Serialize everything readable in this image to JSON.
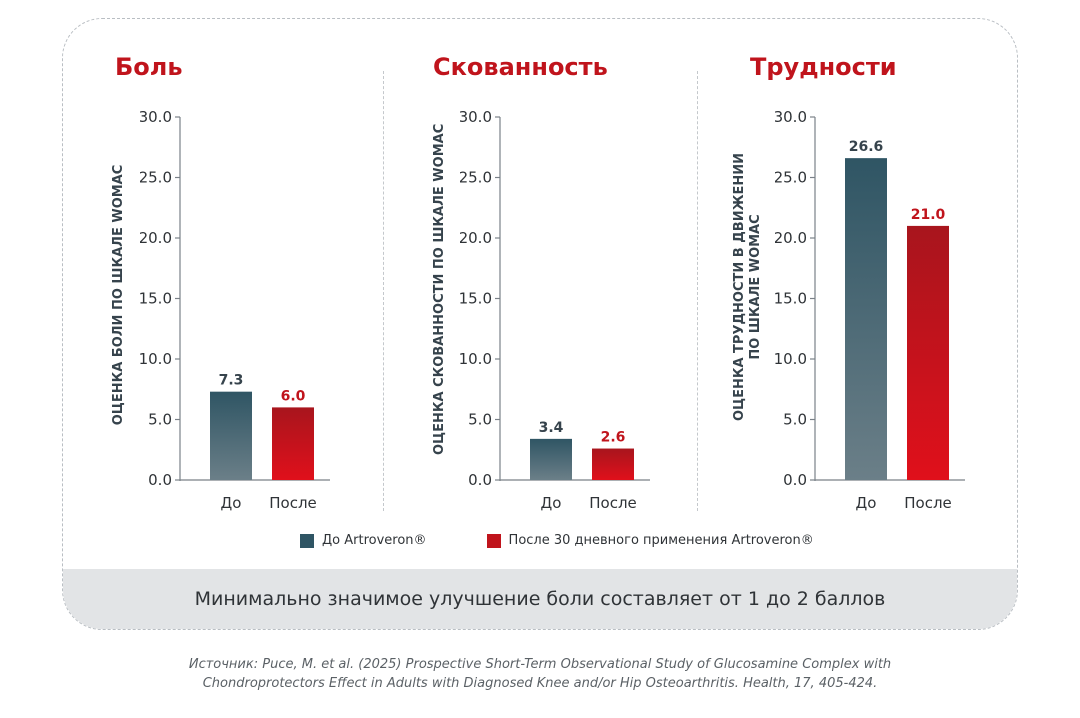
{
  "colors": {
    "before_top": "#2f5564",
    "before_bottom": "#6b7f88",
    "after_top": "#a8151d",
    "after_bottom": "#e0101b",
    "axis": "#7a8188",
    "text_dark": "#2f3337",
    "accent": "#c0141c"
  },
  "chart_data": [
    {
      "type": "bar",
      "title": "Боль",
      "ylabel": "ОЦЕНКА БОЛИ ПО ШКАЛЕ WOMAC",
      "categories": [
        "До",
        "После"
      ],
      "values": [
        7.3,
        6.0
      ],
      "value_labels": [
        "7.3",
        "6.0"
      ],
      "ylim": [
        0,
        30
      ],
      "yticks": [
        "0.0",
        "5.0",
        "10.0",
        "15.0",
        "20.0",
        "25.0",
        "30.0"
      ]
    },
    {
      "type": "bar",
      "title": "Скованность",
      "ylabel": "ОЦЕНКА СКОВАННОСТИ ПО ШКАЛЕ WOMAC",
      "categories": [
        "До",
        "После"
      ],
      "values": [
        3.4,
        2.6
      ],
      "value_labels": [
        "3.4",
        "2.6"
      ],
      "ylim": [
        0,
        30
      ],
      "yticks": [
        "0.0",
        "5.0",
        "10.0",
        "15.0",
        "20.0",
        "25.0",
        "30.0"
      ]
    },
    {
      "type": "bar",
      "title": "Трудности",
      "ylabel": [
        "ОЦЕНКА ТРУДНОСТИ В ДВИЖЕНИИ",
        "ПО ШКАЛЕ WOMAC"
      ],
      "categories": [
        "До",
        "После"
      ],
      "values": [
        26.6,
        21.0
      ],
      "value_labels": [
        "26.6",
        "21.0"
      ],
      "ylim": [
        0,
        30
      ],
      "yticks": [
        "0.0",
        "5.0",
        "10.0",
        "15.0",
        "20.0",
        "25.0",
        "30.0"
      ]
    }
  ],
  "legend": {
    "before": "До Artroveron®",
    "after": "После 30 дневного применения Artroveron®"
  },
  "footer_note": "Минимально значимое улучшение боли составляет от 1 до 2 баллов",
  "source": {
    "line1": "Источник: Puce, M. et al. (2025) Prospective Short-Term Observational Study of Glucosamine Complex with",
    "line2": "Chondroprotectors Effect in Adults with Diagnosed Knee and/or Hip Osteoarthritis. Health, 17, 405-424."
  }
}
